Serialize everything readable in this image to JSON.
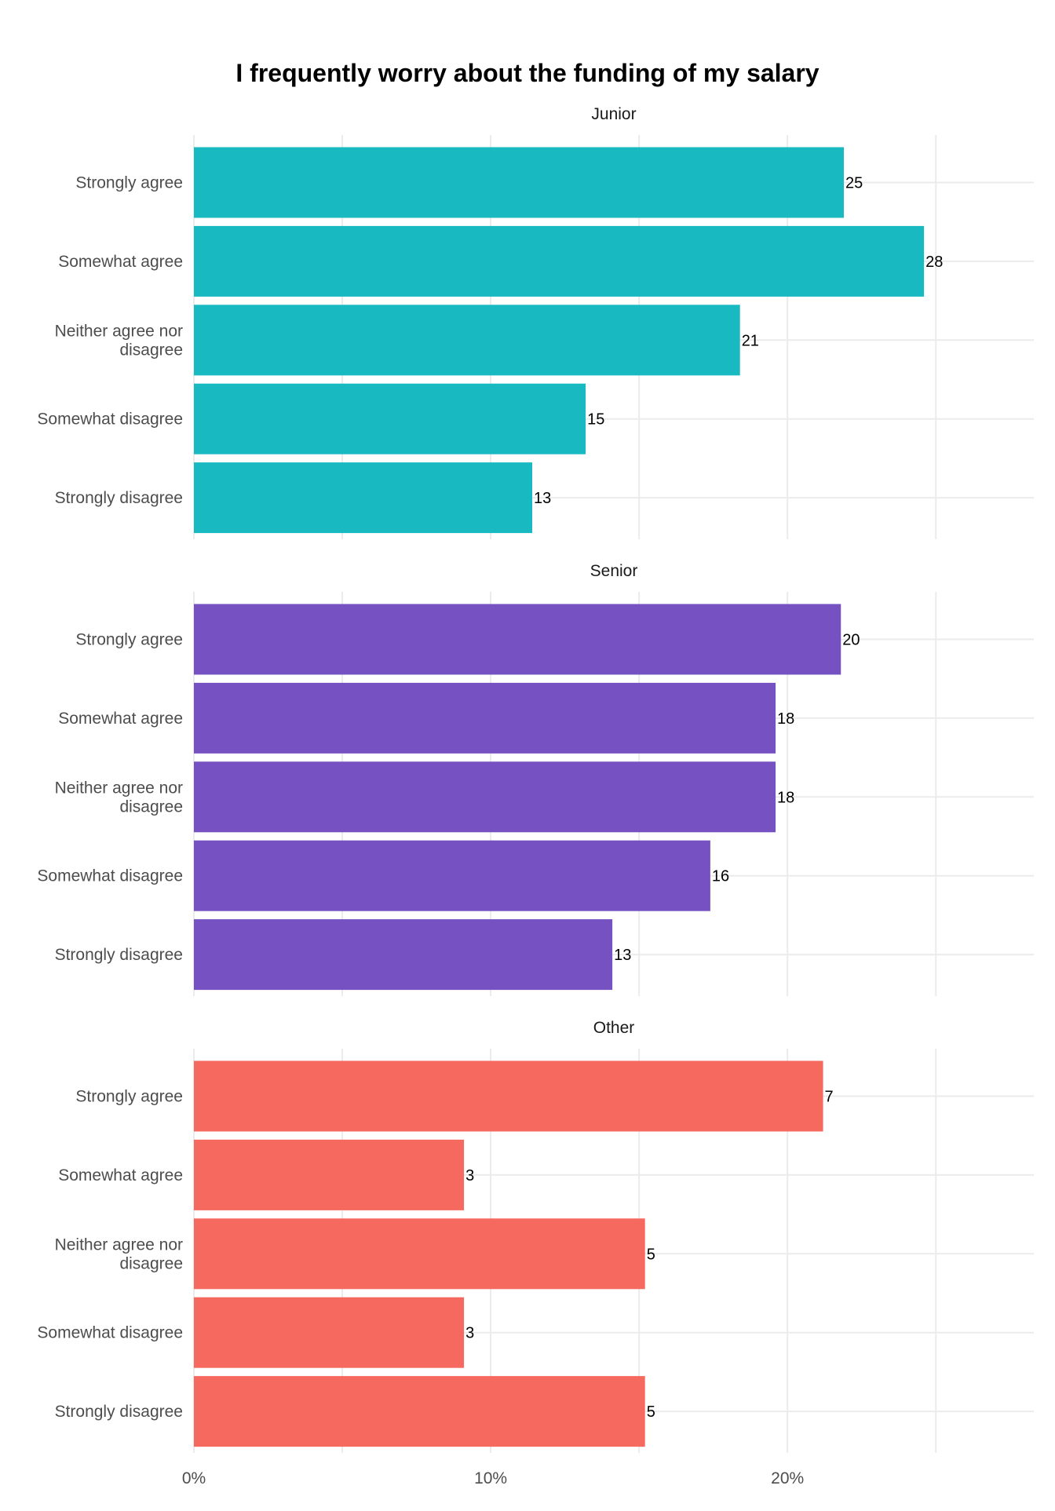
{
  "chart_data": {
    "type": "bar",
    "orientation": "horizontal",
    "title": "I frequently worry about the funding of my salary",
    "xlabel": "",
    "ylabel": "",
    "x_unit": "percent",
    "xlim": [
      0,
      28.3
    ],
    "x_ticks": [
      0,
      10,
      20
    ],
    "x_tick_labels": [
      "0%",
      "10%",
      "20%"
    ],
    "x_minor_gridlines": [
      5,
      15,
      25
    ],
    "grid": true,
    "legend": "none",
    "categories": [
      "Strongly agree",
      "Somewhat agree",
      "Neither agree nor disagree",
      "Somewhat disagree",
      "Strongly disagree"
    ],
    "category_labels": [
      [
        "Strongly agree"
      ],
      [
        "Somewhat agree"
      ],
      [
        "Neither agree nor",
        "disagree"
      ],
      [
        "Somewhat disagree"
      ],
      [
        "Strongly disagree"
      ]
    ],
    "panels": [
      {
        "name": "Junior",
        "color": "#19B9C1",
        "counts": [
          25,
          28,
          21,
          15,
          13
        ],
        "count_labels": [
          "25",
          "28",
          "21",
          "15",
          "13"
        ],
        "percent_values": [
          21.9,
          24.6,
          18.4,
          13.2,
          11.4
        ]
      },
      {
        "name": "Senior",
        "color": "#7651C1",
        "counts": [
          20,
          18,
          18,
          16,
          13
        ],
        "count_labels": [
          "20",
          "18",
          "18",
          "16",
          "13"
        ],
        "percent_values": [
          21.8,
          19.6,
          19.6,
          17.4,
          14.1
        ]
      },
      {
        "name": "Other",
        "color": "#F5695F",
        "counts": [
          7,
          3,
          5,
          3,
          5
        ],
        "count_labels": [
          "7",
          "3",
          "5",
          "3",
          "5"
        ],
        "percent_values": [
          21.2,
          9.1,
          15.2,
          9.1,
          15.2
        ]
      }
    ]
  }
}
